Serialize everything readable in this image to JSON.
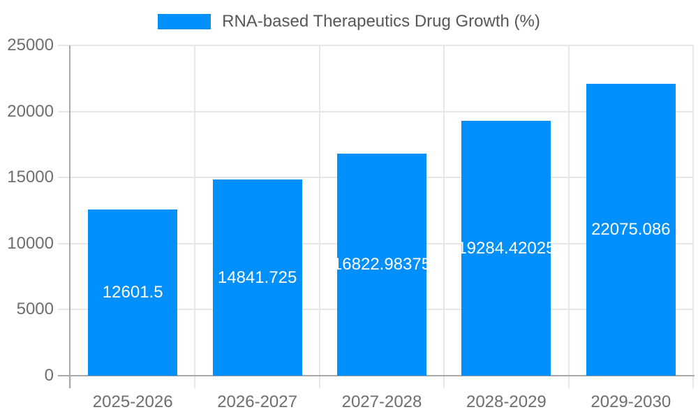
{
  "legend": {
    "label": "RNA-based Therapeutics Drug Growth (%)"
  },
  "chart_data": {
    "type": "bar",
    "title": "RNA-based Therapeutics Drug Growth (%)",
    "series_name": "RNA-based Therapeutics Drug Growth (%)",
    "categories": [
      "2025-2026",
      "2026-2027",
      "2027-2028",
      "2028-2029",
      "2029-2030"
    ],
    "values": [
      12601.5,
      14841.725,
      16822.98375,
      19284.42025,
      22075.086
    ],
    "value_labels": [
      "12601.5",
      "14841.725",
      "16822.98375",
      "19284.42025",
      "22075.086"
    ],
    "xlabel": "",
    "ylabel": "",
    "ylim": [
      0,
      25000
    ],
    "yticks": [
      0,
      5000,
      10000,
      15000,
      20000,
      25000
    ],
    "ytick_labels": [
      "0",
      "5000",
      "10000",
      "15000",
      "20000",
      "25000"
    ],
    "grid": true,
    "legend_position": "top"
  },
  "colors": {
    "bar": "#008FFB",
    "grid": "#e7e7e7",
    "axis": "#a9a9a9",
    "axis_label_text": "#6e6e6e",
    "legend_text": "#55585b",
    "data_label_text": "#ffffff",
    "background": "#ffffff"
  }
}
